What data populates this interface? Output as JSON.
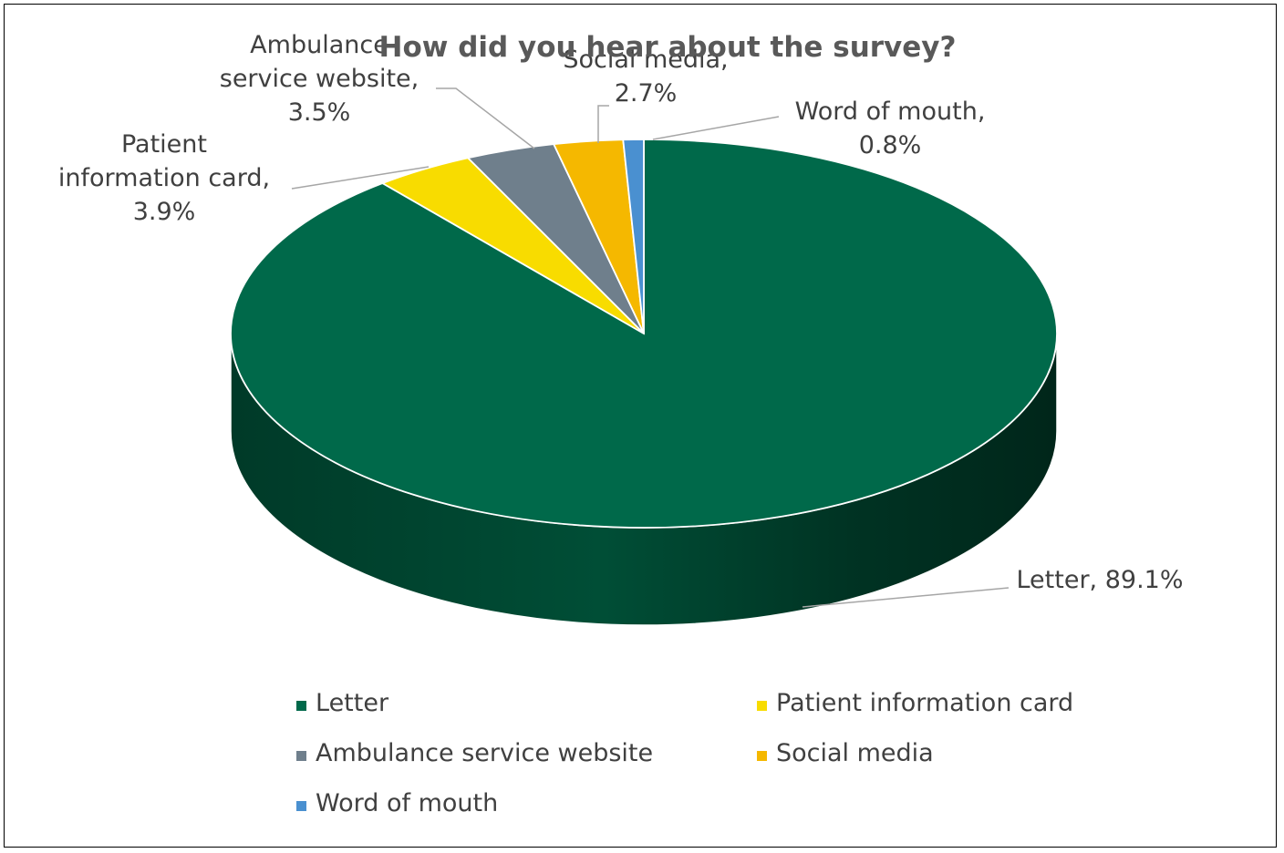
{
  "chart_data": {
    "type": "pie",
    "title": "How did you hear about the survey?",
    "categories": [
      "Letter",
      "Patient information card",
      "Ambulance service website",
      "Social media",
      "Word of mouth"
    ],
    "values": [
      89.1,
      3.9,
      3.5,
      2.7,
      0.8
    ],
    "unit": "%",
    "data_labels": [
      [
        "Letter, 89.1%"
      ],
      [
        "Patient",
        "information card,",
        "3.9%"
      ],
      [
        "Ambulance",
        "service website,",
        "3.5%"
      ],
      [
        "Social media,",
        "2.7%"
      ],
      [
        "Word of mouth,",
        "0.8%"
      ]
    ],
    "colors": [
      "#00694a",
      "#f8dc00",
      "#6f7f8c",
      "#f5b800",
      "#4a90d0"
    ],
    "legend": {
      "position": "bottom"
    },
    "style": "3d"
  }
}
